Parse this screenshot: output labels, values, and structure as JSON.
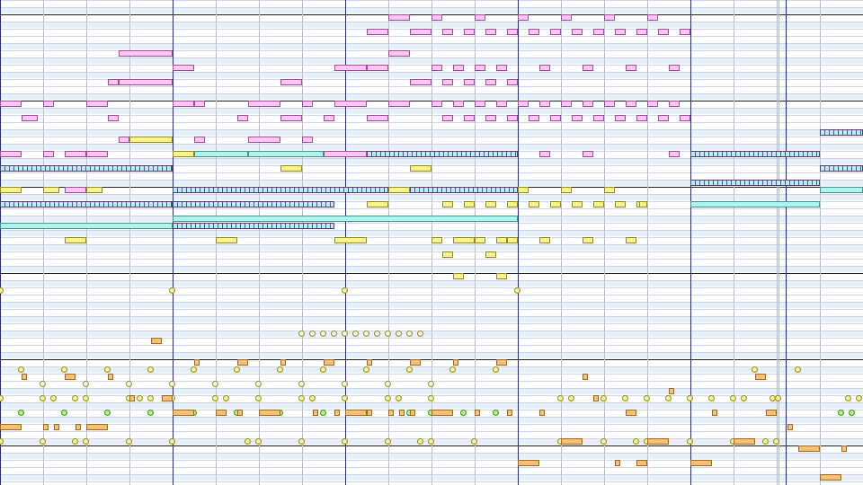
{
  "app": "piano-roll",
  "colors": {
    "background": "#ffffff",
    "black_key_row": "#e6eefa",
    "beat_line": "#b7bec9",
    "bar_line": "#1f2a8a",
    "octave_line": "#222222",
    "note_pink": "#ffc6f3",
    "note_yellow": "#fbf48a",
    "note_cyan": "#aff3ef",
    "note_orange": "#f8c070",
    "drum_green": "#b6f27a"
  },
  "tracks": [
    {
      "name": "pink",
      "color": "#ffc6f3"
    },
    {
      "name": "yellow",
      "color": "#fbf48a"
    },
    {
      "name": "cyan",
      "color": "#aff3ef"
    },
    {
      "name": "orange",
      "color": "#f8c070"
    }
  ]
}
